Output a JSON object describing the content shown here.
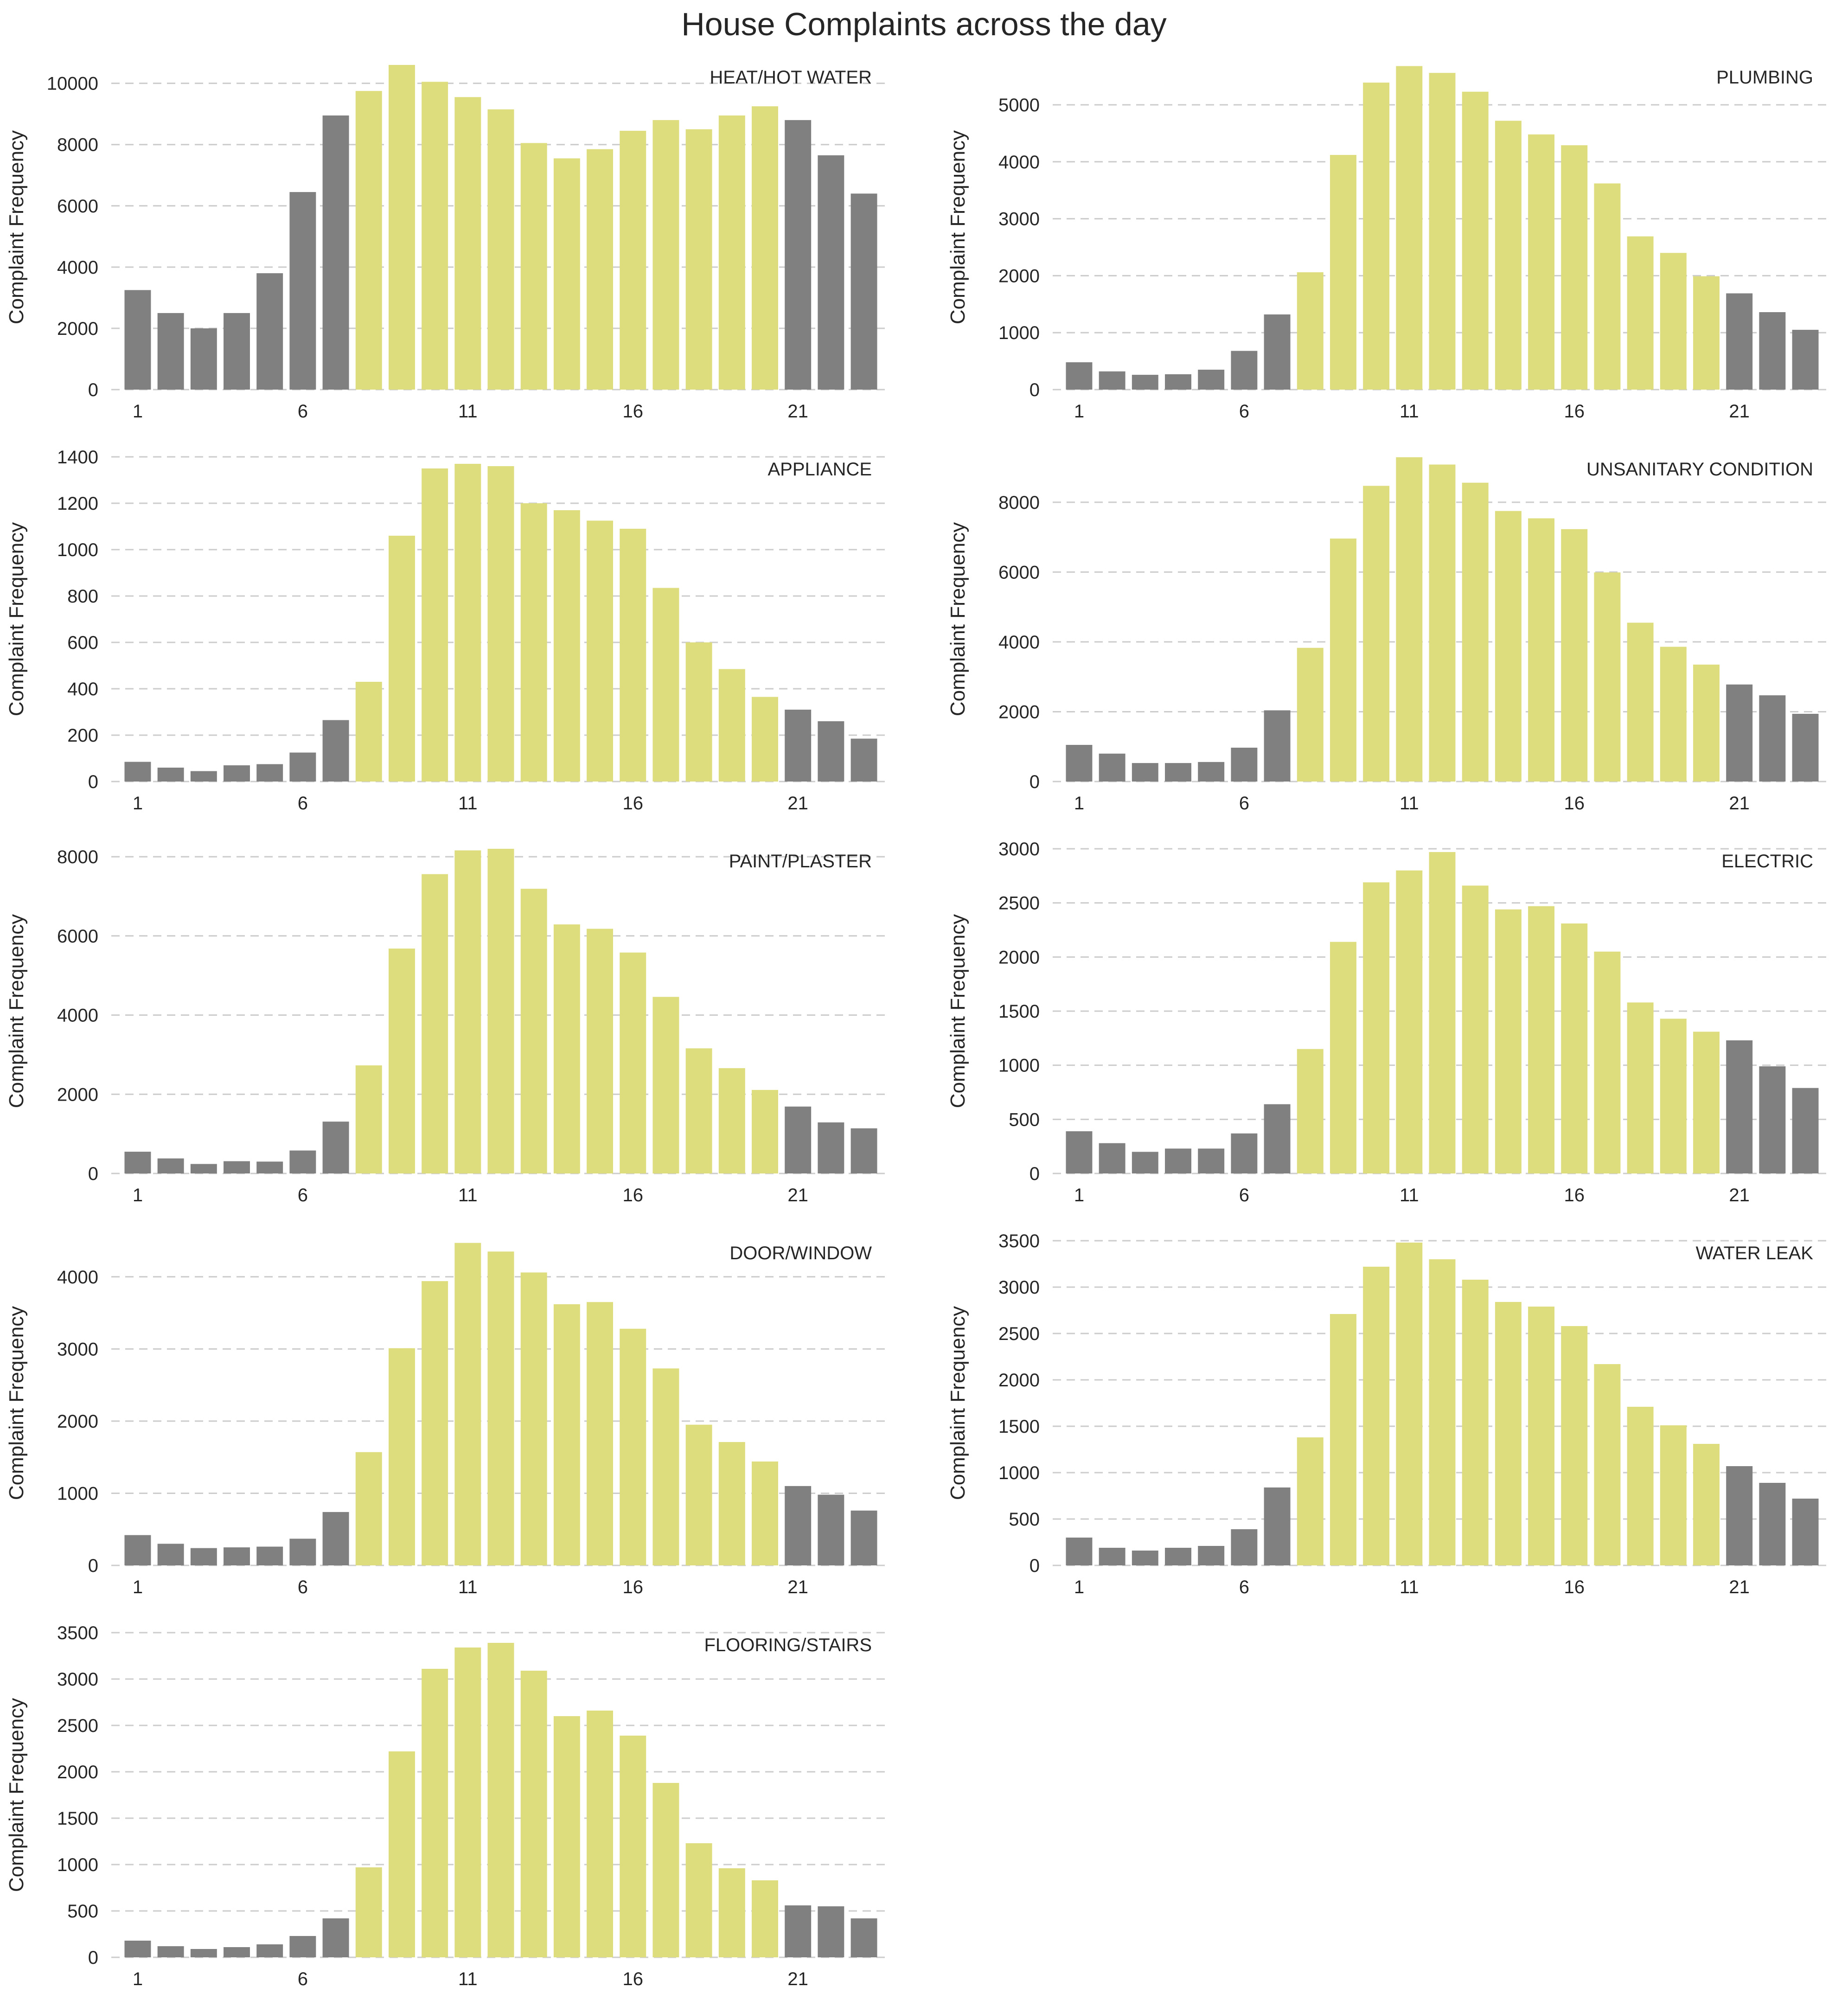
{
  "title": "House Complaints across the day",
  "colors": {
    "daytime": "#dedd7e",
    "nighttime": "#808080",
    "grid": "#cccccc",
    "text": "#262626"
  },
  "chart_data": [
    {
      "type": "bar",
      "annotation": "HEAT/HOT WATER",
      "ylabel": "Complaint Frequency",
      "x": [
        1,
        2,
        3,
        4,
        5,
        6,
        7,
        8,
        9,
        10,
        11,
        12,
        13,
        14,
        15,
        16,
        17,
        18,
        19,
        20,
        21,
        22,
        23
      ],
      "xticks": [
        1,
        6,
        11,
        16,
        21
      ],
      "yticks": [
        0,
        2000,
        4000,
        6000,
        8000,
        10000
      ],
      "ylim": [
        0,
        10600
      ],
      "highlight_hours": [
        8,
        20
      ],
      "grid": "y",
      "values": [
        3250,
        2500,
        2000,
        2500,
        3800,
        6450,
        8950,
        9750,
        10600,
        10050,
        9550,
        9150,
        8050,
        7550,
        7850,
        8450,
        8800,
        8500,
        8950,
        9250,
        8800,
        7650,
        6400
      ]
    },
    {
      "type": "bar",
      "annotation": "PLUMBING",
      "ylabel": "Complaint Frequency",
      "x": [
        1,
        2,
        3,
        4,
        5,
        6,
        7,
        8,
        9,
        10,
        11,
        12,
        13,
        14,
        15,
        16,
        17,
        18,
        19,
        20,
        21,
        22,
        23
      ],
      "xticks": [
        1,
        6,
        11,
        16,
        21
      ],
      "yticks": [
        0,
        1000,
        2000,
        3000,
        4000,
        5000
      ],
      "ylim": [
        0,
        5700
      ],
      "highlight_hours": [
        8,
        20
      ],
      "grid": "y",
      "values": [
        480,
        320,
        260,
        270,
        350,
        680,
        1320,
        2060,
        4120,
        5390,
        5680,
        5560,
        5230,
        4720,
        4480,
        4290,
        3620,
        2690,
        2400,
        1990,
        1690,
        1360,
        1050
      ]
    },
    {
      "type": "bar",
      "annotation": "APPLIANCE",
      "ylabel": "Complaint Frequency",
      "x": [
        1,
        2,
        3,
        4,
        5,
        6,
        7,
        8,
        9,
        10,
        11,
        12,
        13,
        14,
        15,
        16,
        17,
        18,
        19,
        20,
        21,
        22,
        23
      ],
      "xticks": [
        1,
        6,
        11,
        16,
        21
      ],
      "yticks": [
        0,
        200,
        400,
        600,
        800,
        1000,
        1200,
        1400
      ],
      "ylim": [
        0,
        1400
      ],
      "highlight_hours": [
        8,
        20
      ],
      "grid": "y",
      "values": [
        85,
        60,
        45,
        70,
        75,
        125,
        265,
        430,
        1060,
        1350,
        1370,
        1360,
        1200,
        1170,
        1125,
        1090,
        835,
        600,
        485,
        365,
        310,
        260,
        185
      ]
    },
    {
      "type": "bar",
      "annotation": "UNSANITARY CONDITION",
      "ylabel": "Complaint Frequency",
      "x": [
        1,
        2,
        3,
        4,
        5,
        6,
        7,
        8,
        9,
        10,
        11,
        12,
        13,
        14,
        15,
        16,
        17,
        18,
        19,
        20,
        21,
        22,
        23
      ],
      "xticks": [
        1,
        6,
        11,
        16,
        21
      ],
      "yticks": [
        0,
        2000,
        4000,
        6000,
        8000
      ],
      "ylim": [
        0,
        9300
      ],
      "highlight_hours": [
        8,
        20
      ],
      "grid": "y",
      "values": [
        1050,
        800,
        530,
        530,
        560,
        970,
        2040,
        3830,
        6960,
        8470,
        9290,
        9080,
        8560,
        7750,
        7540,
        7230,
        5990,
        4550,
        3860,
        3350,
        2780,
        2470,
        1940
      ]
    },
    {
      "type": "bar",
      "annotation": "PAINT/PLASTER",
      "ylabel": "Complaint Frequency",
      "x": [
        1,
        2,
        3,
        4,
        5,
        6,
        7,
        8,
        9,
        10,
        11,
        12,
        13,
        14,
        15,
        16,
        17,
        18,
        19,
        20,
        21,
        22,
        23
      ],
      "xticks": [
        1,
        6,
        11,
        16,
        21
      ],
      "yticks": [
        0,
        2000,
        4000,
        6000,
        8000
      ],
      "ylim": [
        0,
        8200
      ],
      "highlight_hours": [
        8,
        20
      ],
      "grid": "y",
      "values": [
        550,
        380,
        240,
        310,
        300,
        580,
        1310,
        2730,
        5680,
        7560,
        8160,
        8200,
        7190,
        6290,
        6180,
        5580,
        4460,
        3160,
        2660,
        2110,
        1690,
        1290,
        1140
      ]
    },
    {
      "type": "bar",
      "annotation": "ELECTRIC",
      "ylabel": "Complaint Frequency",
      "x": [
        1,
        2,
        3,
        4,
        5,
        6,
        7,
        8,
        9,
        10,
        11,
        12,
        13,
        14,
        15,
        16,
        17,
        18,
        19,
        20,
        21,
        22,
        23
      ],
      "xticks": [
        1,
        6,
        11,
        16,
        21
      ],
      "yticks": [
        0,
        500,
        1000,
        1500,
        2000,
        2500,
        3000
      ],
      "ylim": [
        0,
        3000
      ],
      "highlight_hours": [
        8,
        20
      ],
      "grid": "y",
      "values": [
        390,
        280,
        200,
        230,
        230,
        370,
        640,
        1150,
        2140,
        2690,
        2800,
        2970,
        2660,
        2440,
        2470,
        2310,
        2050,
        1580,
        1430,
        1310,
        1230,
        990,
        790
      ]
    },
    {
      "type": "bar",
      "annotation": "DOOR/WINDOW",
      "ylabel": "Complaint Frequency",
      "x": [
        1,
        2,
        3,
        4,
        5,
        6,
        7,
        8,
        9,
        10,
        11,
        12,
        13,
        14,
        15,
        16,
        17,
        18,
        19,
        20,
        21,
        22,
        23
      ],
      "xticks": [
        1,
        6,
        11,
        16,
        21
      ],
      "yticks": [
        0,
        1000,
        2000,
        3000,
        4000
      ],
      "ylim": [
        0,
        4500
      ],
      "highlight_hours": [
        8,
        20
      ],
      "grid": "y",
      "values": [
        420,
        300,
        240,
        250,
        260,
        370,
        740,
        1570,
        3010,
        3940,
        4470,
        4350,
        4060,
        3620,
        3650,
        3280,
        2730,
        1950,
        1710,
        1440,
        1100,
        980,
        760
      ]
    },
    {
      "type": "bar",
      "annotation": "WATER LEAK",
      "ylabel": "Complaint Frequency",
      "x": [
        1,
        2,
        3,
        4,
        5,
        6,
        7,
        8,
        9,
        10,
        11,
        12,
        13,
        14,
        15,
        16,
        17,
        18,
        19,
        20,
        21,
        22,
        23
      ],
      "xticks": [
        1,
        6,
        11,
        16,
        21
      ],
      "yticks": [
        0,
        500,
        1000,
        1500,
        2000,
        2500,
        3000,
        3500
      ],
      "ylim": [
        0,
        3500
      ],
      "highlight_hours": [
        8,
        20
      ],
      "grid": "y",
      "values": [
        300,
        190,
        160,
        190,
        210,
        390,
        840,
        1380,
        2710,
        3220,
        3480,
        3300,
        3080,
        2840,
        2790,
        2580,
        2170,
        1710,
        1510,
        1310,
        1070,
        890,
        720
      ]
    },
    {
      "type": "bar",
      "annotation": "FLOORING/STAIRS",
      "ylabel": "Complaint Frequency",
      "x": [
        1,
        2,
        3,
        4,
        5,
        6,
        7,
        8,
        9,
        10,
        11,
        12,
        13,
        14,
        15,
        16,
        17,
        18,
        19,
        20,
        21,
        22,
        23
      ],
      "xticks": [
        1,
        6,
        11,
        16,
        21
      ],
      "yticks": [
        0,
        500,
        1000,
        1500,
        2000,
        2500,
        3000,
        3500
      ],
      "ylim": [
        0,
        3500
      ],
      "highlight_hours": [
        8,
        20
      ],
      "grid": "y",
      "values": [
        180,
        120,
        90,
        110,
        140,
        230,
        420,
        970,
        2220,
        3110,
        3340,
        3390,
        3090,
        2600,
        2660,
        2390,
        1880,
        1230,
        960,
        830,
        560,
        550,
        420
      ]
    }
  ]
}
